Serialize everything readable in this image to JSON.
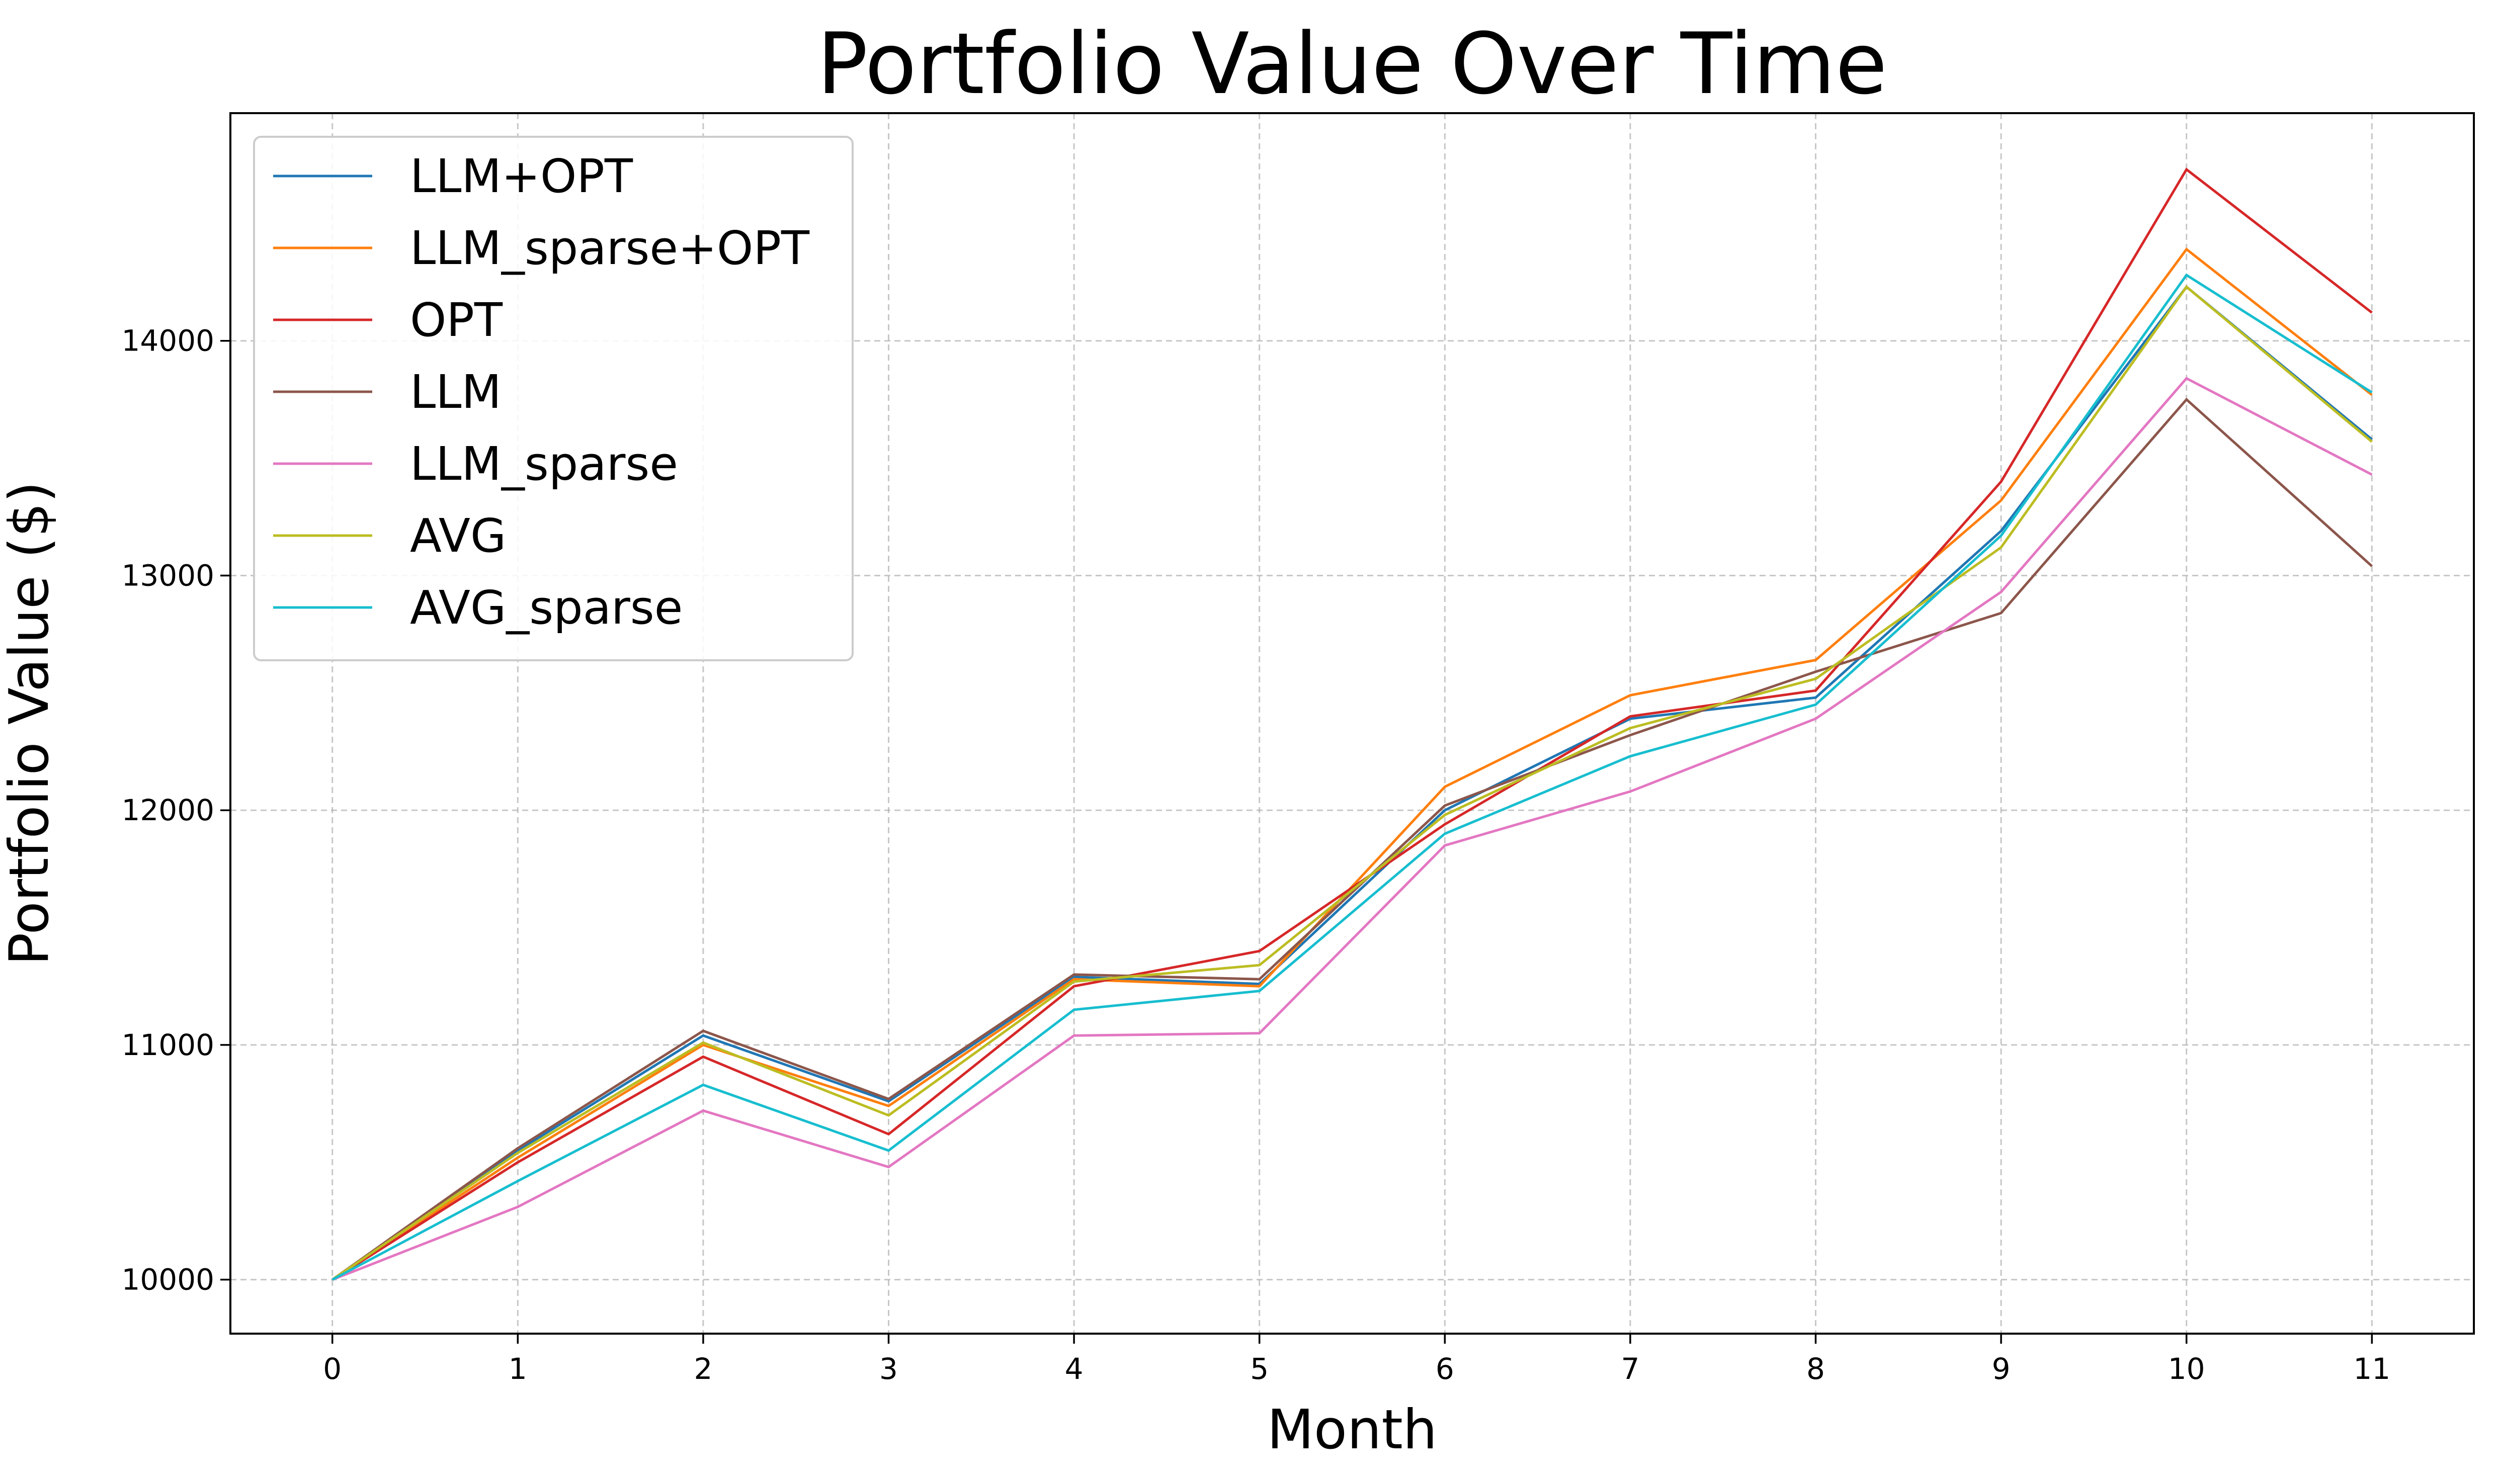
{
  "chart_data": {
    "type": "line",
    "title": "Portfolio Value Over Time",
    "xlabel": "Month",
    "ylabel": "Portfolio Value ($)",
    "x": [
      0,
      1,
      2,
      3,
      4,
      5,
      6,
      7,
      8,
      9,
      10,
      11
    ],
    "x_ticks": [
      "0",
      "1",
      "2",
      "3",
      "4",
      "5",
      "6",
      "7",
      "8",
      "9",
      "10",
      "11"
    ],
    "y_ticks": [
      "10000",
      "11000",
      "12000",
      "13000",
      "14000"
    ],
    "y_tick_values": [
      10000,
      11000,
      12000,
      13000,
      14000
    ],
    "xlim": [
      -0.55,
      11.55
    ],
    "ylim": [
      9770,
      14970
    ],
    "grid": true,
    "legend_position": "top-left",
    "series": [
      {
        "name": "LLM+OPT",
        "color": "#1f77b4",
        "values": [
          10000,
          10550,
          11040,
          10760,
          11290,
          11260,
          12000,
          12390,
          12480,
          13190,
          14230,
          13580
        ]
      },
      {
        "name": "LLM_sparse+OPT",
        "color": "#ff7f0e",
        "values": [
          10000,
          10520,
          11000,
          10740,
          11280,
          11250,
          12100,
          12490,
          12640,
          13320,
          14390,
          13770
        ]
      },
      {
        "name": "OPT",
        "color": "#d62728",
        "values": [
          10000,
          10500,
          10950,
          10620,
          11250,
          11400,
          11940,
          12400,
          12510,
          13400,
          14730,
          14120
        ]
      },
      {
        "name": "LLM",
        "color": "#8c564b",
        "values": [
          10000,
          10560,
          11060,
          10770,
          11300,
          11280,
          12020,
          12320,
          12590,
          12840,
          13750,
          13040
        ]
      },
      {
        "name": "LLM_sparse",
        "color": "#e377c2",
        "values": [
          10000,
          10310,
          10720,
          10480,
          11040,
          11050,
          11850,
          12080,
          12390,
          12930,
          13840,
          13430
        ]
      },
      {
        "name": "AVG",
        "color": "#bcbd22",
        "values": [
          10000,
          10540,
          11010,
          10700,
          11270,
          11340,
          11980,
          12350,
          12560,
          13120,
          14230,
          13570
        ]
      },
      {
        "name": "AVG_sparse",
        "color": "#17becf",
        "values": [
          10000,
          10420,
          10830,
          10550,
          11150,
          11230,
          11900,
          12230,
          12450,
          13170,
          14280,
          13780
        ]
      }
    ]
  }
}
